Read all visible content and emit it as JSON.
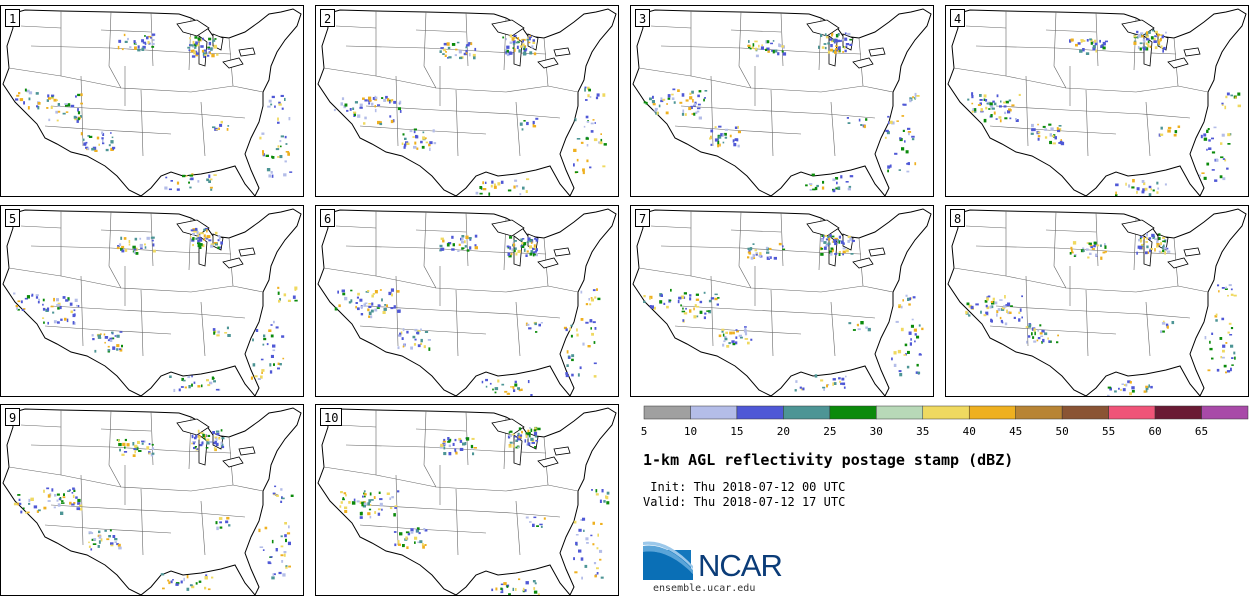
{
  "members": [
    {
      "label": "1"
    },
    {
      "label": "2"
    },
    {
      "label": "3"
    },
    {
      "label": "4"
    },
    {
      "label": "5"
    },
    {
      "label": "6"
    },
    {
      "label": "7"
    },
    {
      "label": "8"
    },
    {
      "label": "9"
    },
    {
      "label": "10"
    }
  ],
  "colorbar": {
    "colors": [
      "#a0a0a0",
      "#b4bde8",
      "#4f58d6",
      "#4d9595",
      "#0b8a0b",
      "#b8d9b8",
      "#efd960",
      "#eeb020",
      "#b88434",
      "#8a5434",
      "#ef5478",
      "#6a1a34",
      "#a84aa8"
    ],
    "ticks": [
      "5",
      "10",
      "15",
      "20",
      "25",
      "30",
      "35",
      "40",
      "45",
      "50",
      "55",
      "60",
      "65"
    ]
  },
  "title": "1-km AGL reflectivity postage stamp (dBZ)",
  "init_line": " Init: Thu 2018-07-12 00 UTC",
  "valid_line": "Valid: Thu 2018-07-12 17 UTC",
  "logo": {
    "name": "NCAR",
    "url": "ensemble.ucar.edu"
  }
}
